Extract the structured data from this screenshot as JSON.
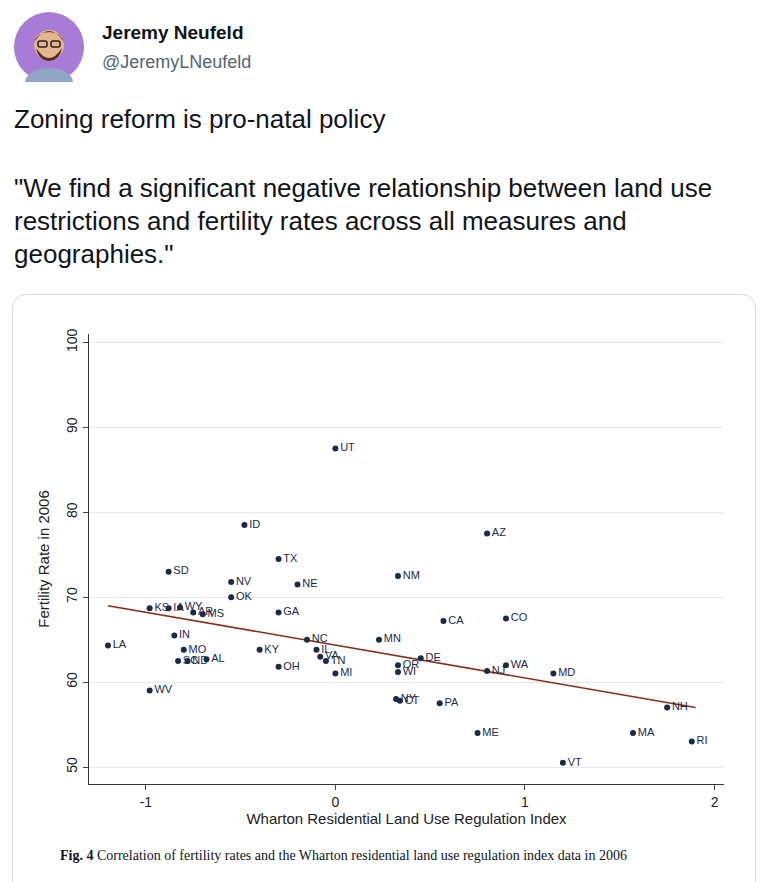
{
  "post": {
    "author": "Jeremy Neufeld",
    "handle": "@JeremyLNeufeld",
    "text": "Zoning reform is pro-natal policy",
    "quote": "\"We find a significant negative relationship between land use restrictions and fertility rates across all measures and geographies.\""
  },
  "caption": {
    "label": "Fig. 4",
    "text": "Correlation of fertility rates and the Wharton residential land use regulation index data in 2006"
  },
  "chart_data": {
    "type": "scatter",
    "x_label": "Wharton Residential Land Use Regulation Index",
    "y_label": "Fertility Rate in 2006",
    "x": [
      0,
      -0.48,
      0.8,
      -0.3,
      -0.88,
      -0.55,
      -0.2,
      0.33,
      -0.55,
      -0.98,
      -0.88,
      -0.82,
      -0.75,
      -0.7,
      -0.3,
      0.57,
      0.9,
      -0.85,
      -1.2,
      -0.8,
      -0.4,
      0.23,
      -0.15,
      -0.68,
      -0.83,
      -0.78,
      -0.3,
      -0.1,
      -0.08,
      -0.05,
      0,
      0.33,
      0.33,
      0.45,
      0.8,
      0.9,
      1.15,
      0.32,
      0.34,
      0.55,
      0.75,
      1.75,
      1.57,
      1.88,
      1.2,
      -0.98
    ],
    "values": [
      87.5,
      78.5,
      77.5,
      74.5,
      73,
      71.8,
      71.5,
      72.5,
      70,
      68.7,
      68.7,
      68.8,
      68.2,
      68,
      68.2,
      67.2,
      67.5,
      65.5,
      64.3,
      63.8,
      63.8,
      65,
      65,
      62.7,
      62.5,
      62.5,
      61.8,
      63.8,
      63,
      62.5,
      61,
      62,
      61.2,
      62.8,
      61.3,
      62,
      61,
      58,
      57.8,
      57.5,
      54,
      57,
      54,
      53,
      50.5,
      59
    ],
    "point_labels": [
      "UT",
      "ID",
      "AZ",
      "TX",
      "SD",
      "NV",
      "NE",
      "NM",
      "OK",
      "KS",
      "IA",
      "WY",
      "AR",
      "MS",
      "GA",
      "CA",
      "CO",
      "IN",
      "LA",
      "MO",
      "KY",
      "MN",
      "NC",
      "AL",
      "SC",
      "ND",
      "OH",
      "IL",
      "VA",
      "TN",
      "MI",
      "OR",
      "WI",
      "DE",
      "NJ",
      "WA",
      "MD",
      "NY",
      "CT",
      "PA",
      "ME",
      "NH",
      "MA",
      "RI",
      "VT",
      "WV"
    ],
    "color": "#1a2a48",
    "marker": "circle",
    "fit_line": {
      "x": [
        -1.2,
        1.9
      ],
      "values": [
        69,
        57
      ],
      "color": "#8c2d19",
      "line_style": "solid"
    },
    "xlim": [
      -1.3,
      2.05
    ],
    "xticks": [
      -1,
      0,
      1,
      2
    ],
    "ylim": [
      48,
      101
    ],
    "yticks": [
      50,
      60,
      70,
      80,
      90,
      100
    ],
    "grid": true
  }
}
